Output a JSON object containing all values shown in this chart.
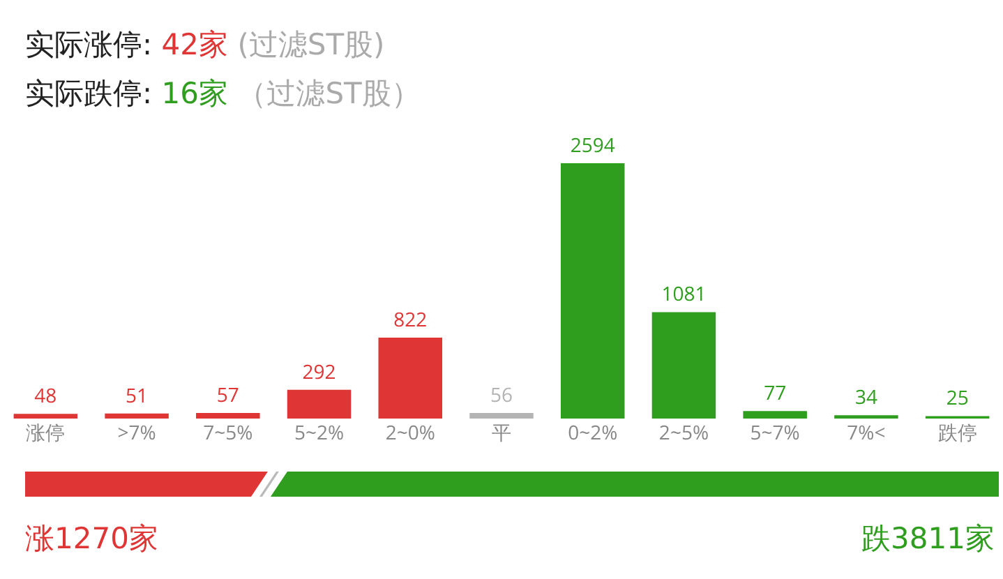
{
  "chart_data": {
    "type": "bar",
    "title": "实际涨停: 42家 (过滤ST股)",
    "subtitle": "实际跌停: 16家 （过滤ST股）",
    "categories": [
      "涨停",
      ">7%",
      "7~5%",
      "5~2%",
      "2~0%",
      "平",
      "0~2%",
      "2~5%",
      "5~7%",
      "7%<",
      "跌停"
    ],
    "values": [
      48,
      51,
      57,
      292,
      822,
      56,
      2594,
      1081,
      77,
      34,
      25
    ],
    "colors": [
      "#e03535",
      "#e03535",
      "#e03535",
      "#e03535",
      "#e03535",
      "#b4b4b4",
      "#2f9e1f",
      "#2f9e1f",
      "#2f9e1f",
      "#2f9e1f",
      "#2f9e1f"
    ],
    "data_labels": true,
    "grid": false,
    "legend": false,
    "annotations": [
      "涨1270家",
      "跌3811家"
    ]
  }
}
